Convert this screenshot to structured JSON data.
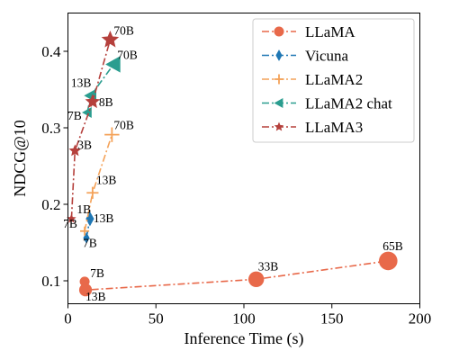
{
  "chart_data": {
    "type": "scatter",
    "title": "",
    "xlabel": "Inference Time (s)",
    "ylabel": "NDCG@10",
    "xlim": [
      0,
      200
    ],
    "ylim": [
      0.07,
      0.45
    ],
    "xticks": [
      0,
      50,
      100,
      150,
      200
    ],
    "yticks": [
      0.1,
      0.2,
      0.3,
      0.4
    ],
    "grid": false,
    "legend_position": "top-right",
    "series": [
      {
        "name": "LLaMA",
        "color": "#e8694a",
        "marker": "circle",
        "linestyle": "dashdot",
        "points": [
          {
            "x": 9.5,
            "y": 0.099,
            "label": "7B"
          },
          {
            "x": 10,
            "y": 0.088,
            "label": "13B"
          },
          {
            "x": 107,
            "y": 0.102,
            "label": "33B"
          },
          {
            "x": 182,
            "y": 0.126,
            "label": "65B"
          }
        ]
      },
      {
        "name": "Vicuna",
        "color": "#1f77b4",
        "marker": "diamond",
        "linestyle": "dashdot",
        "points": [
          {
            "x": 10.5,
            "y": 0.156,
            "label": "7B"
          },
          {
            "x": 12.5,
            "y": 0.181,
            "label": "13B"
          }
        ]
      },
      {
        "name": "LLaMA2",
        "color": "#f4a259",
        "marker": "plus",
        "linestyle": "dashdot",
        "points": [
          {
            "x": 9.5,
            "y": 0.165,
            "label": "7B"
          },
          {
            "x": 14,
            "y": 0.215,
            "label": "13B"
          },
          {
            "x": 25,
            "y": 0.291,
            "label": "70B"
          }
        ]
      },
      {
        "name": "LLaMA2 chat",
        "color": "#2a9d8f",
        "marker": "triangle-left",
        "linestyle": "dashdot",
        "points": [
          {
            "x": 11,
            "y": 0.32,
            "label": "7B"
          },
          {
            "x": 13,
            "y": 0.342,
            "label": "13B"
          },
          {
            "x": 26,
            "y": 0.383,
            "label": "70B"
          }
        ]
      },
      {
        "name": "LLaMA3",
        "color": "#b5403c",
        "marker": "star",
        "linestyle": "dashdot",
        "points": [
          {
            "x": 2,
            "y": 0.181,
            "label": "1B"
          },
          {
            "x": 4,
            "y": 0.27,
            "label": "3B"
          },
          {
            "x": 14,
            "y": 0.334,
            "label": "8B"
          },
          {
            "x": 24,
            "y": 0.415,
            "label": "70B"
          }
        ]
      }
    ]
  }
}
